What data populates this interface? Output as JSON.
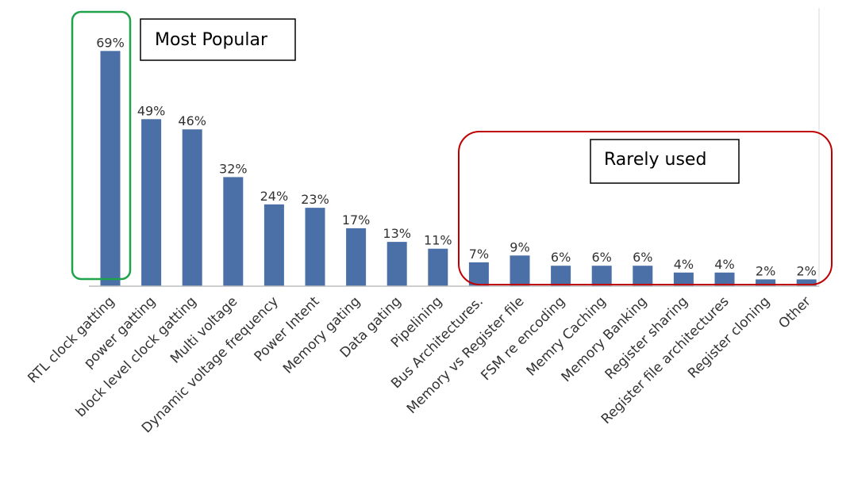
{
  "chart_data": {
    "type": "bar",
    "categories": [
      "RTL clock gatting",
      "power gatting",
      "block level clock gatting",
      "Multi voltage",
      "Dynamic voltage frequency",
      "Power Intent",
      "Memory gating",
      "Data gating",
      "Pipelining",
      "Bus Architectures.",
      "Memory vs Register file",
      "FSM re encoding",
      "Memry Caching",
      "Memory Banking",
      "Register sharing",
      "Register file architectures",
      "Register  cloning",
      "Other"
    ],
    "values": [
      69,
      49,
      46,
      32,
      24,
      23,
      17,
      13,
      11,
      7,
      9,
      6,
      6,
      6,
      4,
      4,
      2,
      2
    ],
    "value_labels": [
      "69%",
      "49%",
      "46%",
      "32%",
      "24%",
      "23%",
      "17%",
      "13%",
      "11%",
      "7%",
      "9%",
      "6%",
      "6%",
      "6%",
      "4%",
      "4%",
      "2%",
      "2%"
    ],
    "unit": "%",
    "ylim": [
      0,
      80
    ],
    "grid": false,
    "bar_color": "#4A70A7",
    "annotations": [
      {
        "text": "Most Popular",
        "color": "#1FA34A",
        "covers": [
          "RTL clock gatting"
        ]
      },
      {
        "text": "Rarely used",
        "color": "#C00000",
        "covers": [
          "Bus Architectures.",
          "Memory vs Register file",
          "FSM re encoding",
          "Memry Caching",
          "Memory Banking",
          "Register sharing",
          "Register file architectures",
          "Register  cloning",
          "Other"
        ]
      }
    ]
  }
}
